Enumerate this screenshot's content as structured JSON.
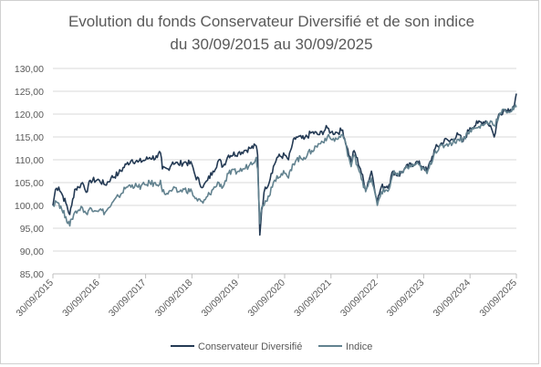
{
  "chart_data": {
    "type": "line",
    "title_line1": "Evolution du fonds Conservateur Diversifié et de son indice",
    "title_line2": "du 30/09/2015 au 30/09/2025",
    "xlabel": "",
    "ylabel": "",
    "ylim": [
      85,
      130
    ],
    "y_ticks": [
      "85,00",
      "90,00",
      "95,00",
      "100,00",
      "105,00",
      "110,00",
      "115,00",
      "120,00",
      "125,00",
      "130,00"
    ],
    "x_ticks": [
      "30/09/2015",
      "30/09/2016",
      "30/09/2017",
      "30/09/2018",
      "30/09/2019",
      "30/09/2020",
      "30/09/2021",
      "30/09/2022",
      "30/09/2023",
      "30/09/2024",
      "30/09/2025"
    ],
    "grid": true,
    "legend_position": "bottom",
    "series": [
      {
        "name": "Conservateur Diversifié",
        "color": "#243a54",
        "points": [
          [
            "2015-09-30",
            100.0
          ],
          [
            "2015-10-20",
            103.5
          ],
          [
            "2015-11-15",
            104.0
          ],
          [
            "2015-12-10",
            102.5
          ],
          [
            "2016-01-10",
            100.5
          ],
          [
            "2016-02-10",
            98.0
          ],
          [
            "2016-02-25",
            100.0
          ],
          [
            "2016-03-20",
            103.5
          ],
          [
            "2016-04-20",
            104.0
          ],
          [
            "2016-05-20",
            105.0
          ],
          [
            "2016-06-27",
            103.0
          ],
          [
            "2016-07-20",
            105.5
          ],
          [
            "2016-09-30",
            105.5
          ],
          [
            "2016-11-15",
            104.5
          ],
          [
            "2016-12-31",
            106.0
          ],
          [
            "2017-03-01",
            107.0
          ],
          [
            "2017-05-01",
            109.0
          ],
          [
            "2017-06-15",
            110.0
          ],
          [
            "2017-08-01",
            109.5
          ],
          [
            "2017-09-30",
            110.0
          ],
          [
            "2017-11-01",
            110.5
          ],
          [
            "2017-12-31",
            110.5
          ],
          [
            "2018-01-25",
            111.5
          ],
          [
            "2018-02-09",
            108.0
          ],
          [
            "2018-03-25",
            108.0
          ],
          [
            "2018-05-01",
            109.5
          ],
          [
            "2018-06-15",
            109.0
          ],
          [
            "2018-08-01",
            109.5
          ],
          [
            "2018-09-30",
            109.0
          ],
          [
            "2018-10-26",
            106.5
          ],
          [
            "2018-12-26",
            104.0
          ],
          [
            "2019-01-31",
            105.5
          ],
          [
            "2019-03-15",
            107.5
          ],
          [
            "2019-05-01",
            110.0
          ],
          [
            "2019-06-01",
            108.5
          ],
          [
            "2019-07-15",
            111.0
          ],
          [
            "2019-09-30",
            111.5
          ],
          [
            "2019-11-15",
            112.0
          ],
          [
            "2019-12-31",
            112.5
          ],
          [
            "2020-02-19",
            113.0
          ],
          [
            "2020-03-01",
            111.0
          ],
          [
            "2020-03-18",
            93.5
          ],
          [
            "2020-04-01",
            99.0
          ],
          [
            "2020-04-30",
            104.0
          ],
          [
            "2020-05-31",
            105.0
          ],
          [
            "2020-06-15",
            107.0
          ],
          [
            "2020-07-31",
            110.5
          ],
          [
            "2020-09-30",
            111.0
          ],
          [
            "2020-10-30",
            110.0
          ],
          [
            "2020-11-30",
            113.5
          ],
          [
            "2020-12-31",
            115.0
          ],
          [
            "2021-03-01",
            114.5
          ],
          [
            "2021-05-01",
            116.0
          ],
          [
            "2021-07-01",
            115.5
          ],
          [
            "2021-09-01",
            117.0
          ],
          [
            "2021-09-30",
            116.0
          ],
          [
            "2021-11-15",
            116.0
          ],
          [
            "2021-12-31",
            116.5
          ],
          [
            "2022-01-31",
            113.0
          ],
          [
            "2022-03-08",
            109.5
          ],
          [
            "2022-03-31",
            112.0
          ],
          [
            "2022-05-20",
            108.0
          ],
          [
            "2022-06-30",
            103.5
          ],
          [
            "2022-08-15",
            107.5
          ],
          [
            "2022-09-30",
            101.0
          ],
          [
            "2022-10-31",
            104.0
          ],
          [
            "2022-12-31",
            104.5
          ],
          [
            "2023-02-01",
            107.5
          ],
          [
            "2023-03-15",
            106.5
          ],
          [
            "2023-05-01",
            108.0
          ],
          [
            "2023-07-31",
            109.5
          ],
          [
            "2023-09-30",
            108.5
          ],
          [
            "2023-10-27",
            107.5
          ],
          [
            "2023-12-31",
            112.5
          ],
          [
            "2024-03-31",
            114.5
          ],
          [
            "2024-04-19",
            114.0
          ],
          [
            "2024-06-30",
            115.5
          ],
          [
            "2024-08-05",
            114.0
          ],
          [
            "2024-09-30",
            117.0
          ],
          [
            "2024-11-30",
            118.0
          ],
          [
            "2025-01-31",
            118.5
          ],
          [
            "2025-03-10",
            117.5
          ],
          [
            "2025-04-08",
            115.0
          ],
          [
            "2025-05-15",
            120.0
          ],
          [
            "2025-06-30",
            121.0
          ],
          [
            "2025-08-15",
            121.0
          ],
          [
            "2025-09-15",
            122.0
          ],
          [
            "2025-09-30",
            124.5
          ]
        ]
      },
      {
        "name": "Indice",
        "color": "#62828f",
        "points": [
          [
            "2015-09-30",
            100.0
          ],
          [
            "2015-10-20",
            101.0
          ],
          [
            "2015-11-15",
            100.5
          ],
          [
            "2015-12-10",
            99.0
          ],
          [
            "2016-01-10",
            97.5
          ],
          [
            "2016-02-10",
            95.5
          ],
          [
            "2016-02-25",
            97.0
          ],
          [
            "2016-03-20",
            98.5
          ],
          [
            "2016-04-20",
            99.0
          ],
          [
            "2016-05-20",
            99.5
          ],
          [
            "2016-06-27",
            98.0
          ],
          [
            "2016-07-20",
            99.5
          ],
          [
            "2016-09-30",
            99.0
          ],
          [
            "2016-11-15",
            98.5
          ],
          [
            "2016-12-31",
            100.0
          ],
          [
            "2017-03-01",
            102.0
          ],
          [
            "2017-05-01",
            104.0
          ],
          [
            "2017-06-15",
            104.5
          ],
          [
            "2017-08-01",
            104.0
          ],
          [
            "2017-09-30",
            104.5
          ],
          [
            "2017-11-01",
            105.0
          ],
          [
            "2017-12-31",
            104.5
          ],
          [
            "2018-01-25",
            105.5
          ],
          [
            "2018-02-09",
            103.0
          ],
          [
            "2018-03-25",
            102.5
          ],
          [
            "2018-05-01",
            103.5
          ],
          [
            "2018-06-15",
            103.0
          ],
          [
            "2018-08-01",
            103.5
          ],
          [
            "2018-09-30",
            103.0
          ],
          [
            "2018-10-26",
            101.5
          ],
          [
            "2018-12-26",
            100.5
          ],
          [
            "2019-01-31",
            102.0
          ],
          [
            "2019-03-15",
            103.5
          ],
          [
            "2019-05-01",
            105.0
          ],
          [
            "2019-06-01",
            104.0
          ],
          [
            "2019-07-15",
            107.0
          ],
          [
            "2019-09-30",
            107.5
          ],
          [
            "2019-11-15",
            108.0
          ],
          [
            "2019-12-31",
            109.0
          ],
          [
            "2020-02-19",
            110.5
          ],
          [
            "2020-03-01",
            108.0
          ],
          [
            "2020-03-18",
            96.0
          ],
          [
            "2020-04-01",
            99.5
          ],
          [
            "2020-04-30",
            101.0
          ],
          [
            "2020-05-31",
            102.0
          ],
          [
            "2020-06-15",
            104.0
          ],
          [
            "2020-07-31",
            106.5
          ],
          [
            "2020-09-30",
            107.0
          ],
          [
            "2020-10-30",
            106.0
          ],
          [
            "2020-11-30",
            109.0
          ],
          [
            "2020-12-31",
            110.0
          ],
          [
            "2021-03-01",
            110.5
          ],
          [
            "2021-05-01",
            112.0
          ],
          [
            "2021-07-01",
            113.5
          ],
          [
            "2021-09-01",
            115.0
          ],
          [
            "2021-09-30",
            114.5
          ],
          [
            "2021-11-15",
            114.5
          ],
          [
            "2021-12-31",
            115.5
          ],
          [
            "2022-01-31",
            112.5
          ],
          [
            "2022-03-08",
            108.5
          ],
          [
            "2022-03-31",
            111.0
          ],
          [
            "2022-05-20",
            107.0
          ],
          [
            "2022-06-30",
            103.0
          ],
          [
            "2022-08-15",
            106.0
          ],
          [
            "2022-09-30",
            100.0
          ],
          [
            "2022-10-31",
            103.0
          ],
          [
            "2022-12-31",
            103.5
          ],
          [
            "2023-02-01",
            107.0
          ],
          [
            "2023-03-15",
            106.5
          ],
          [
            "2023-05-01",
            108.0
          ],
          [
            "2023-07-31",
            109.0
          ],
          [
            "2023-09-30",
            108.0
          ],
          [
            "2023-10-27",
            107.0
          ],
          [
            "2023-12-31",
            112.0
          ],
          [
            "2024-03-31",
            113.5
          ],
          [
            "2024-04-19",
            113.5
          ],
          [
            "2024-06-30",
            114.5
          ],
          [
            "2024-08-05",
            114.5
          ],
          [
            "2024-09-30",
            116.5
          ],
          [
            "2024-11-30",
            117.0
          ],
          [
            "2025-01-31",
            118.0
          ],
          [
            "2025-03-10",
            118.5
          ],
          [
            "2025-04-08",
            117.5
          ],
          [
            "2025-05-15",
            119.5
          ],
          [
            "2025-06-30",
            121.0
          ],
          [
            "2025-08-15",
            120.5
          ],
          [
            "2025-09-15",
            121.5
          ],
          [
            "2025-09-30",
            121.5
          ]
        ]
      }
    ]
  }
}
